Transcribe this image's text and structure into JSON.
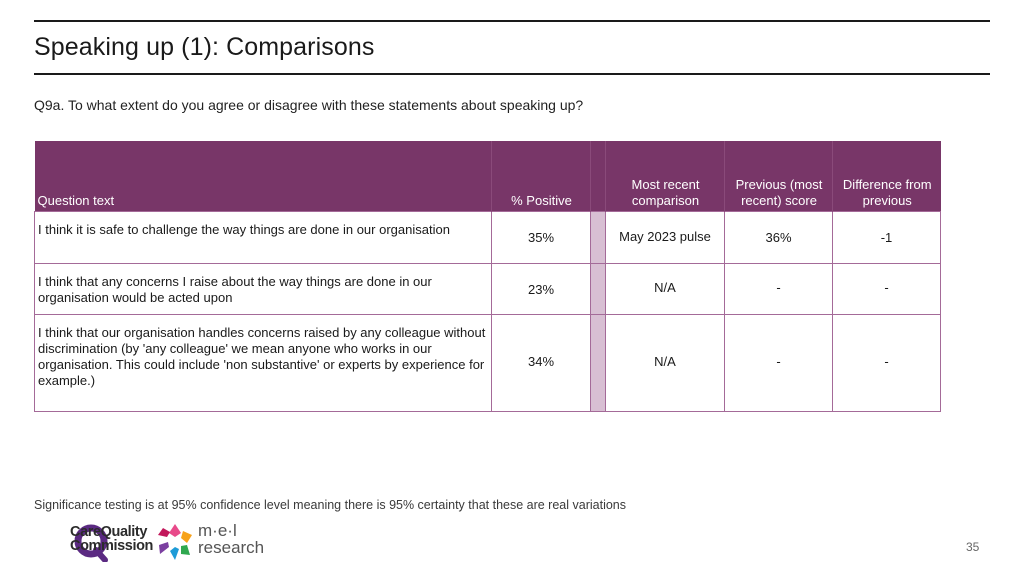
{
  "header": {
    "title": "Speaking up (1): Comparisons"
  },
  "question": "Q9a. To what extent do you agree or disagree with these statements about speaking up?",
  "table": {
    "headers": {
      "question_text": "Question text",
      "positive": "% Positive",
      "comparison": "Most recent comparison",
      "previous": "Previous (most recent) score",
      "difference": "Difference from previous"
    },
    "rows": [
      {
        "question": "I think it is safe to challenge the way things are done in our organisation",
        "positive": "35%",
        "comparison": "May 2023 pulse",
        "previous": "36%",
        "difference": "-1"
      },
      {
        "question": "I think that any concerns I raise about the way things are done in our organisation would be acted upon",
        "positive": "23%",
        "comparison": "N/A",
        "previous": "-",
        "difference": "-"
      },
      {
        "question": "I think that our organisation handles concerns raised by any colleague without discrimination (by 'any colleague' we mean anyone who works in our organisation. This could include 'non substantive' or experts by experience for example.)",
        "positive": "34%",
        "comparison": "N/A",
        "previous": "-",
        "difference": "-"
      }
    ]
  },
  "footnote": "Significance testing is at 95% confidence level meaning there is 95% certainty that these are real variations",
  "logos": {
    "cqc_line1": "CareQuality",
    "cqc_line2": "Commission",
    "mel_line1": "m·e·l",
    "mel_line2": "research"
  },
  "page_number": "35",
  "colors": {
    "header_bg": "#783668",
    "gap_column": "#d8bfd3",
    "border": "#a46a98",
    "cqc_purple": "#5b2a82"
  }
}
